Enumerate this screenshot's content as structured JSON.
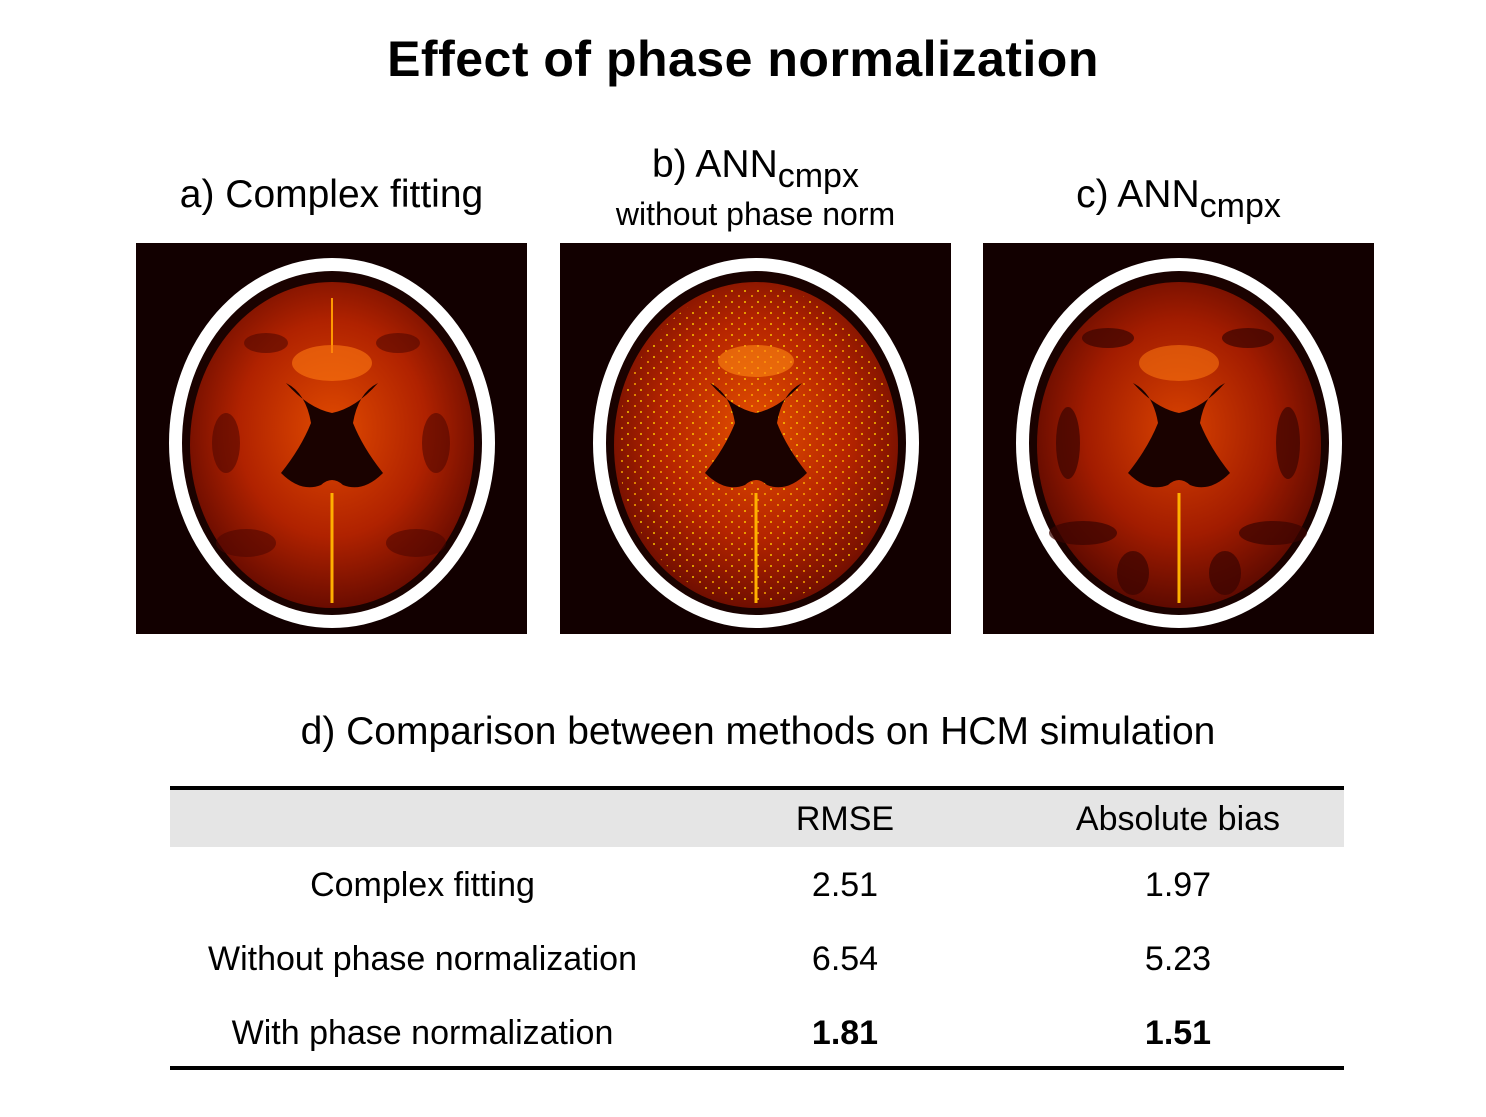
{
  "title": "Effect of phase normalization",
  "panels": [
    {
      "label_prefix": "a) Complex fitting",
      "label_sub": "",
      "subtitle": ""
    },
    {
      "label_prefix": "b) ANN",
      "label_sub": "cmpx",
      "subtitle": "without phase norm"
    },
    {
      "label_prefix": "c) ANN",
      "label_sub": "cmpx",
      "subtitle": ""
    }
  ],
  "table": {
    "title": "d) Comparison between methods on HCM simulation",
    "headers": [
      "",
      "RMSE",
      "Absolute bias"
    ],
    "rows": [
      {
        "method": "Complex fitting",
        "rmse": "2.51",
        "bias": "1.97"
      },
      {
        "method": "Without phase normalization",
        "rmse": "6.54",
        "bias": "5.23"
      },
      {
        "method": "With phase normalization",
        "rmse": "1.81",
        "bias": "1.51"
      }
    ]
  },
  "colors": {
    "background": "#120000",
    "tissue": "#b32000",
    "highlight": "#ff9a00",
    "skull": "#ffffff"
  }
}
